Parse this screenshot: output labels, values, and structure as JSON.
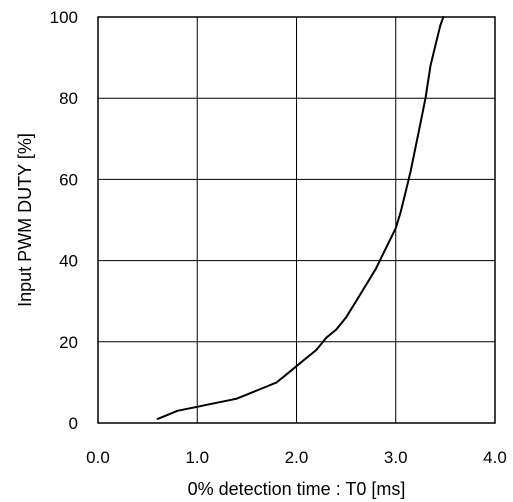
{
  "chart_data": {
    "type": "line",
    "title": "",
    "xlabel": "0% detection time : T0 [ms]",
    "ylabel": "Input PWM DUTY [%]",
    "xlim": [
      0,
      4
    ],
    "ylim": [
      0,
      100
    ],
    "x_ticks": [
      0,
      1,
      2,
      3,
      4
    ],
    "x_tick_labels": [
      "0.0",
      "1.0",
      "2.0",
      "3.0",
      "4.0"
    ],
    "y_ticks": [
      0,
      20,
      40,
      60,
      80,
      100
    ],
    "y_tick_labels": [
      "0",
      "20",
      "40",
      "60",
      "80",
      "100"
    ],
    "grid": true,
    "line_color": "#000000",
    "series": [
      {
        "x": [
          0.6,
          0.7,
          0.8,
          0.9,
          1.0,
          1.1,
          1.2,
          1.3,
          1.4,
          1.5,
          1.6,
          1.7,
          1.8,
          1.9,
          2.0,
          2.1,
          2.2,
          2.3,
          2.4,
          2.5,
          2.6,
          2.7,
          2.8,
          2.9,
          3.0,
          3.05,
          3.1,
          3.15,
          3.2,
          3.25,
          3.3,
          3.35,
          3.4,
          3.45,
          3.48
        ],
        "y": [
          1,
          2,
          3,
          3.5,
          4,
          4.5,
          5,
          5.5,
          6,
          7,
          8,
          9,
          10,
          12,
          14,
          16,
          18,
          21,
          23,
          26,
          30,
          34,
          38,
          43,
          48,
          52,
          57,
          62,
          68,
          74,
          80,
          88,
          93,
          98,
          100
        ]
      }
    ]
  }
}
